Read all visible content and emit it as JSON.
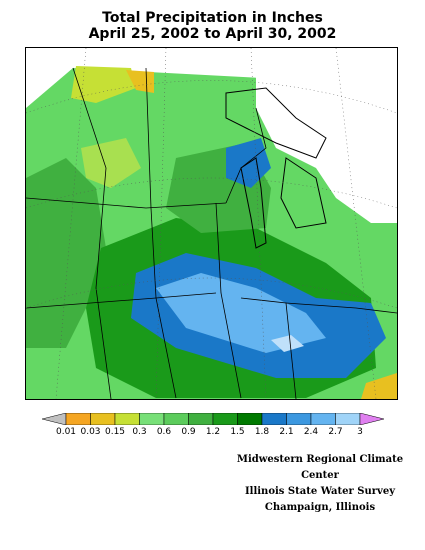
{
  "title": {
    "line1": "Total Precipitation in Inches",
    "line2": "April 25, 2002 to April 30, 2002"
  },
  "legend": {
    "ticks": [
      "0.01",
      "0.03",
      "0.15",
      "0.3",
      "0.6",
      "0.9",
      "1.2",
      "1.5",
      "1.8",
      "2.1",
      "2.4",
      "2.7",
      "3"
    ],
    "colors": [
      "#c0c0c0",
      "#f5a623",
      "#e8c020",
      "#c6e035",
      "#78e078",
      "#5ccc5c",
      "#40b040",
      "#1a9a1a",
      "#007a00",
      "#1a78c8",
      "#3c98e0",
      "#64b4f0",
      "#a0d4f8",
      "#e080f0"
    ],
    "under_color": "#c0c0c0",
    "over_color": "#e080f0"
  },
  "credits": {
    "line1": "Midwestern Regional Climate Center",
    "line2": "Illinois State Water Survey",
    "line3": "Champaign, Illinois"
  }
}
